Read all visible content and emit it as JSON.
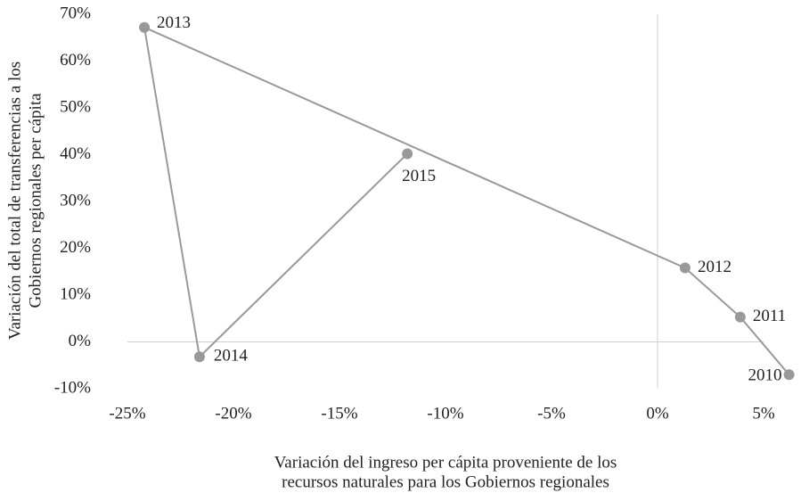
{
  "chart_data": {
    "type": "line",
    "xlabel": [
      "Variación del ingreso per cápita proveniente de los",
      "recursos naturales para los Gobiernos regionales"
    ],
    "ylabel": [
      "Variación del total de transferencias a los",
      "Gobiernos regionales per cápita"
    ],
    "series": [
      {
        "color": "#999999",
        "labels": [
          "2010",
          "2011",
          "2012",
          "2013",
          "2014",
          "2015"
        ],
        "x": [
          6.2,
          3.9,
          1.3,
          -24.2,
          -21.6,
          -11.8
        ],
        "values": [
          -7,
          5.3,
          15.8,
          67.2,
          -3.2,
          40.2
        ]
      }
    ],
    "xlim": [
      -25,
      5
    ],
    "xticks": [
      {
        "value": -25,
        "label": "-25%"
      },
      {
        "value": -20,
        "label": "-20%"
      },
      {
        "value": -15,
        "label": "-15%"
      },
      {
        "value": -10,
        "label": "-10%"
      },
      {
        "value": -5,
        "label": "-5%"
      },
      {
        "value": 0,
        "label": "0%"
      },
      {
        "value": 5,
        "label": "5%"
      }
    ],
    "ylim": [
      -10,
      70
    ],
    "yticks": [
      {
        "value": -10,
        "label": "-10%"
      },
      {
        "value": 0,
        "label": "0%"
      },
      {
        "value": 10,
        "label": "10%"
      },
      {
        "value": 20,
        "label": "20%"
      },
      {
        "value": 30,
        "label": "30%"
      },
      {
        "value": 40,
        "label": "40%"
      },
      {
        "value": 50,
        "label": "50%"
      },
      {
        "value": 60,
        "label": "60%"
      },
      {
        "value": 70,
        "label": "70%"
      }
    ]
  }
}
